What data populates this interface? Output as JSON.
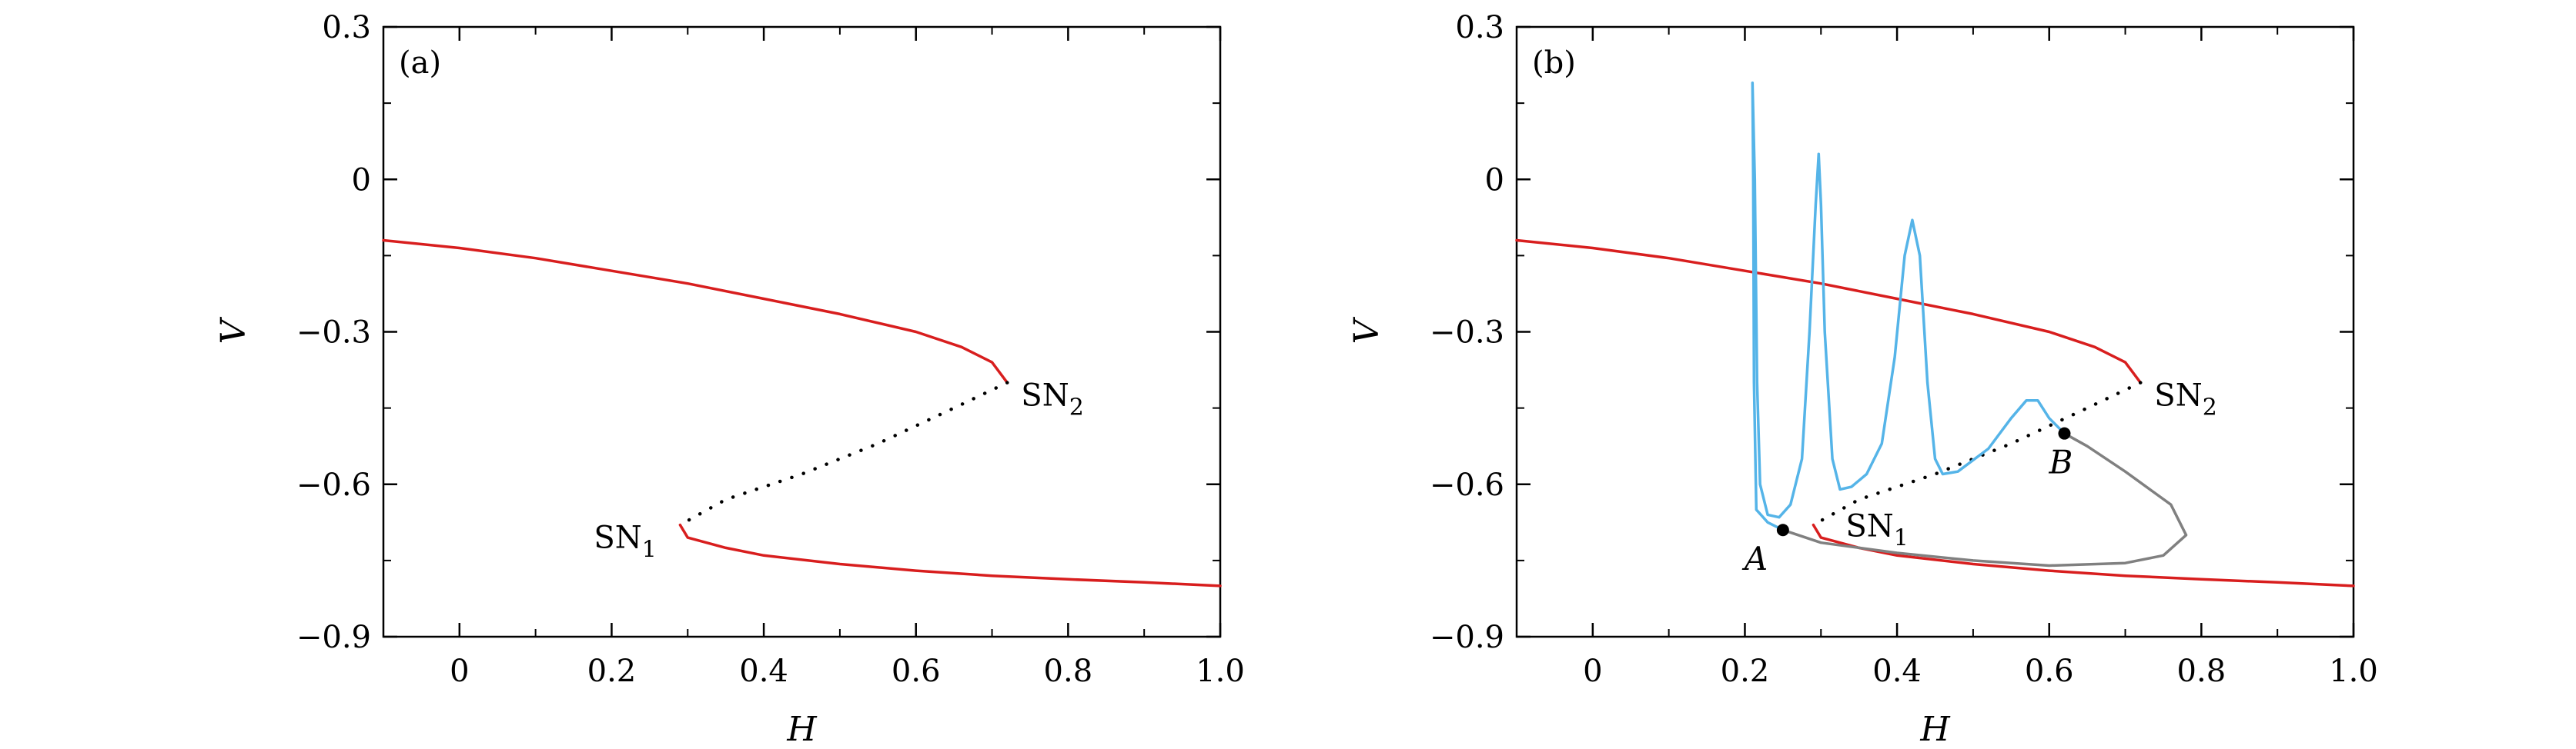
{
  "chart_data": [
    {
      "type": "line",
      "panel_label": "(a)",
      "xlabel": "H",
      "ylabel": "V",
      "xlim": [
        -0.1,
        1.0
      ],
      "ylim": [
        -0.9,
        0.3
      ],
      "xticks": [
        0,
        0.2,
        0.4,
        0.6,
        0.8,
        1.0
      ],
      "xtick_labels": [
        "0",
        "0.2",
        "0.4",
        "0.6",
        "0.8",
        "1.0"
      ],
      "yticks": [
        0.3,
        0,
        -0.3,
        -0.6,
        -0.9
      ],
      "ytick_labels": [
        "0.3",
        "0",
        "−0.3",
        "−0.6",
        "−0.9"
      ],
      "grid": false,
      "colors": {
        "stable": "#d81e1e",
        "unstable": "#000000"
      },
      "series": [
        {
          "style": "solid",
          "color": "#d81e1e",
          "points": [
            [
              -0.1,
              -0.12
            ],
            [
              0.0,
              -0.135
            ],
            [
              0.1,
              -0.155
            ],
            [
              0.2,
              -0.18
            ],
            [
              0.3,
              -0.205
            ],
            [
              0.4,
              -0.235
            ],
            [
              0.5,
              -0.265
            ],
            [
              0.6,
              -0.3
            ],
            [
              0.66,
              -0.33
            ],
            [
              0.7,
              -0.36
            ],
            [
              0.72,
              -0.4
            ]
          ]
        },
        {
          "style": "dotted",
          "color": "#000000",
          "points": [
            [
              0.72,
              -0.4
            ],
            [
              0.65,
              -0.45
            ],
            [
              0.55,
              -0.52
            ],
            [
              0.45,
              -0.58
            ],
            [
              0.35,
              -0.63
            ],
            [
              0.29,
              -0.68
            ]
          ]
        },
        {
          "style": "solid",
          "color": "#d81e1e",
          "points": [
            [
              0.29,
              -0.68
            ],
            [
              0.3,
              -0.705
            ],
            [
              0.35,
              -0.725
            ],
            [
              0.4,
              -0.74
            ],
            [
              0.5,
              -0.757
            ],
            [
              0.6,
              -0.77
            ],
            [
              0.7,
              -0.78
            ],
            [
              0.8,
              -0.787
            ],
            [
              0.9,
              -0.793
            ],
            [
              1.0,
              -0.8
            ]
          ]
        }
      ],
      "annotations": [
        {
          "text": "SN",
          "sub": "2",
          "x": 0.72,
          "y": -0.4,
          "placement": "right"
        },
        {
          "text": "SN",
          "sub": "1",
          "x": 0.29,
          "y": -0.68,
          "placement": "left"
        }
      ]
    },
    {
      "type": "line",
      "panel_label": "(b)",
      "xlabel": "H",
      "ylabel": "V",
      "xlim": [
        -0.1,
        1.0
      ],
      "ylim": [
        -0.9,
        0.3
      ],
      "xticks": [
        0,
        0.2,
        0.4,
        0.6,
        0.8,
        1.0
      ],
      "xtick_labels": [
        "0",
        "0.2",
        "0.4",
        "0.6",
        "0.8",
        "1.0"
      ],
      "yticks": [
        0.3,
        0,
        -0.3,
        -0.6,
        -0.9
      ],
      "ytick_labels": [
        "0.3",
        "0",
        "−0.3",
        "−0.6",
        "−0.9"
      ],
      "grid": false,
      "colors": {
        "stable": "#d81e1e",
        "unstable": "#000000",
        "trajectory": "#55b4e8",
        "orbit": "#808080"
      },
      "series": [
        {
          "style": "solid",
          "color": "#d81e1e",
          "points": [
            [
              -0.1,
              -0.12
            ],
            [
              0.0,
              -0.135
            ],
            [
              0.1,
              -0.155
            ],
            [
              0.2,
              -0.18
            ],
            [
              0.3,
              -0.205
            ],
            [
              0.4,
              -0.235
            ],
            [
              0.5,
              -0.265
            ],
            [
              0.6,
              -0.3
            ],
            [
              0.66,
              -0.33
            ],
            [
              0.7,
              -0.36
            ],
            [
              0.72,
              -0.4
            ]
          ]
        },
        {
          "style": "dotted",
          "color": "#000000",
          "points": [
            [
              0.72,
              -0.4
            ],
            [
              0.65,
              -0.45
            ],
            [
              0.55,
              -0.52
            ],
            [
              0.45,
              -0.58
            ],
            [
              0.35,
              -0.63
            ],
            [
              0.29,
              -0.68
            ]
          ]
        },
        {
          "style": "solid",
          "color": "#d81e1e",
          "points": [
            [
              0.29,
              -0.68
            ],
            [
              0.3,
              -0.705
            ],
            [
              0.35,
              -0.725
            ],
            [
              0.4,
              -0.74
            ],
            [
              0.5,
              -0.757
            ],
            [
              0.6,
              -0.77
            ],
            [
              0.7,
              -0.78
            ],
            [
              0.8,
              -0.787
            ],
            [
              0.9,
              -0.793
            ],
            [
              1.0,
              -0.8
            ]
          ]
        },
        {
          "style": "solid",
          "color": "#808080",
          "points": [
            [
              0.25,
              -0.69
            ],
            [
              0.3,
              -0.715
            ],
            [
              0.4,
              -0.735
            ],
            [
              0.5,
              -0.75
            ],
            [
              0.6,
              -0.76
            ],
            [
              0.7,
              -0.755
            ],
            [
              0.75,
              -0.74
            ],
            [
              0.78,
              -0.7
            ],
            [
              0.76,
              -0.64
            ],
            [
              0.7,
              -0.575
            ],
            [
              0.65,
              -0.525
            ],
            [
              0.62,
              -0.5
            ]
          ]
        },
        {
          "style": "solid",
          "color": "#55b4e8",
          "points": [
            [
              0.25,
              -0.69
            ],
            [
              0.23,
              -0.675
            ],
            [
              0.215,
              -0.65
            ],
            [
              0.212,
              -0.4
            ],
            [
              0.211,
              0.0
            ],
            [
              0.21,
              0.19
            ],
            [
              0.213,
              0.0
            ],
            [
              0.216,
              -0.4
            ],
            [
              0.22,
              -0.6
            ],
            [
              0.23,
              -0.66
            ],
            [
              0.245,
              -0.665
            ],
            [
              0.26,
              -0.64
            ],
            [
              0.275,
              -0.55
            ],
            [
              0.285,
              -0.3
            ],
            [
              0.293,
              -0.05
            ],
            [
              0.297,
              0.05
            ],
            [
              0.3,
              -0.05
            ],
            [
              0.305,
              -0.3
            ],
            [
              0.315,
              -0.55
            ],
            [
              0.325,
              -0.61
            ],
            [
              0.34,
              -0.605
            ],
            [
              0.36,
              -0.58
            ],
            [
              0.38,
              -0.52
            ],
            [
              0.397,
              -0.35
            ],
            [
              0.41,
              -0.15
            ],
            [
              0.42,
              -0.08
            ],
            [
              0.43,
              -0.15
            ],
            [
              0.44,
              -0.4
            ],
            [
              0.45,
              -0.55
            ],
            [
              0.46,
              -0.58
            ],
            [
              0.48,
              -0.575
            ],
            [
              0.52,
              -0.53
            ],
            [
              0.55,
              -0.47
            ],
            [
              0.57,
              -0.435
            ],
            [
              0.585,
              -0.435
            ],
            [
              0.6,
              -0.47
            ],
            [
              0.62,
              -0.5
            ]
          ]
        }
      ],
      "points": [
        {
          "label": "A",
          "x": 0.25,
          "y": -0.69
        },
        {
          "label": "B",
          "x": 0.62,
          "y": -0.5
        }
      ],
      "annotations": [
        {
          "text": "SN",
          "sub": "2",
          "x": 0.72,
          "y": -0.4,
          "placement": "right"
        },
        {
          "text": "SN",
          "sub": "1",
          "x": 0.29,
          "y": -0.68,
          "placement": "right"
        }
      ]
    }
  ]
}
